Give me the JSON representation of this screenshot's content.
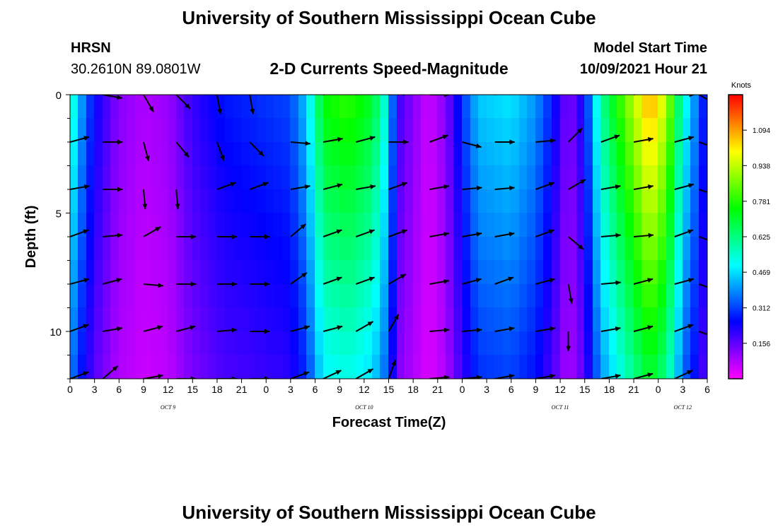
{
  "header": {
    "title": "University of Southern Mississippi Ocean Cube",
    "station": "HRSN",
    "coords": "30.2610N  89.0801W",
    "chart_title": "2-D Currents Speed-Magnitude",
    "model_start_label": "Model Start Time",
    "model_start_value": "10/09/2021 Hour 21"
  },
  "footer": {
    "title": "University of Southern Mississippi Ocean Cube"
  },
  "colors": {
    "magenta": "#ff00ff",
    "blue": "#0000ff",
    "cyan": "#00ffff",
    "green": "#00ff00",
    "yellow": "#ffff00",
    "red": "#ff0000"
  },
  "chart_data": {
    "type": "heatmap",
    "title": "2-D Currents Speed-Magnitude",
    "xlabel": "Forecast Time(Z)",
    "ylabel": "Depth (ft)",
    "colorbar_label": "Knots",
    "colorbar_ticks": [
      "1.094",
      "0.938",
      "0.781",
      "0.625",
      "0.469",
      "0.312",
      "0.156"
    ],
    "colorbar_values": [
      1.094,
      0.938,
      0.781,
      0.625,
      0.469,
      0.312,
      0.156
    ],
    "colorbar_range": [
      0,
      1.25
    ],
    "xlim": [
      0,
      78
    ],
    "ylim": [
      0,
      12
    ],
    "x_tick_labels": [
      "0",
      "3",
      "6",
      "9",
      "12",
      "15",
      "18",
      "21",
      "0",
      "3",
      "6",
      "9",
      "12",
      "15",
      "18",
      "21",
      "0",
      "3",
      "6",
      "9",
      "12",
      "15",
      "18",
      "21",
      "0",
      "3",
      "6"
    ],
    "y_ticks": [
      0,
      5,
      10
    ],
    "y_tick_labels": [
      "0",
      "5",
      "10"
    ],
    "date_labels": [
      {
        "label": "OCT 9",
        "hour": 12
      },
      {
        "label": "OCT 10",
        "hour": 36
      },
      {
        "label": "OCT 11",
        "hour": 60
      },
      {
        "label": "OCT 12",
        "hour": 75
      }
    ],
    "speed_profile": [
      {
        "hour": 0,
        "speed": 0.6
      },
      {
        "hour": 1,
        "speed": 0.45
      },
      {
        "hour": 3,
        "speed": 0.25
      },
      {
        "hour": 6,
        "speed": 0.12
      },
      {
        "hour": 9,
        "speed": 0.08
      },
      {
        "hour": 12,
        "speed": 0.1
      },
      {
        "hour": 15,
        "speed": 0.2
      },
      {
        "hour": 19,
        "speed": 0.27
      },
      {
        "hour": 24,
        "speed": 0.3
      },
      {
        "hour": 27,
        "speed": 0.32
      },
      {
        "hour": 29,
        "speed": 0.45
      },
      {
        "hour": 31,
        "speed": 0.75
      },
      {
        "hour": 34,
        "speed": 0.8
      },
      {
        "hour": 37,
        "speed": 0.72
      },
      {
        "hour": 39,
        "speed": 0.5
      },
      {
        "hour": 40,
        "speed": 0.2
      },
      {
        "hour": 42,
        "speed": 0.12
      },
      {
        "hour": 44,
        "speed": 0.05
      },
      {
        "hour": 46,
        "speed": 0.12
      },
      {
        "hour": 48,
        "speed": 0.3
      },
      {
        "hour": 50,
        "speed": 0.45
      },
      {
        "hour": 54,
        "speed": 0.48
      },
      {
        "hour": 57,
        "speed": 0.4
      },
      {
        "hour": 59,
        "speed": 0.28
      },
      {
        "hour": 61,
        "speed": 0.12
      },
      {
        "hour": 63,
        "speed": 0.25
      },
      {
        "hour": 65,
        "speed": 0.6
      },
      {
        "hour": 68,
        "speed": 0.85
      },
      {
        "hour": 71,
        "speed": 1.1
      },
      {
        "hour": 73,
        "speed": 0.95
      },
      {
        "hour": 75,
        "speed": 0.55
      },
      {
        "hour": 77,
        "speed": 0.35
      },
      {
        "hour": 78,
        "speed": 0.22
      }
    ],
    "vector_times": [
      0,
      4,
      9,
      13,
      18,
      22,
      27,
      31,
      35,
      39,
      44,
      48,
      52,
      57,
      61,
      65,
      69,
      74,
      77
    ],
    "vector_depths": [
      0,
      2,
      4,
      6,
      8,
      10,
      12
    ],
    "vector_angles_deg": [
      [
        30,
        -10,
        -60,
        -45,
        -80,
        -80,
        30,
        10,
        20,
        5,
        0,
        15,
        20,
        30,
        45,
        20,
        15,
        0,
        -30
      ],
      [
        15,
        0,
        -75,
        -50,
        -70,
        -45,
        -5,
        10,
        15,
        0,
        20,
        -15,
        0,
        5,
        45,
        20,
        10,
        15,
        -20
      ],
      [
        10,
        0,
        -85,
        -85,
        20,
        20,
        10,
        15,
        10,
        20,
        10,
        5,
        5,
        20,
        30,
        10,
        10,
        15,
        -20
      ],
      [
        20,
        5,
        30,
        0,
        0,
        0,
        40,
        20,
        20,
        20,
        10,
        10,
        10,
        20,
        -40,
        5,
        5,
        20,
        -20
      ],
      [
        15,
        15,
        -5,
        0,
        0,
        0,
        35,
        20,
        20,
        30,
        10,
        15,
        20,
        15,
        -80,
        5,
        15,
        15,
        -20
      ],
      [
        20,
        10,
        15,
        15,
        5,
        0,
        15,
        15,
        30,
        60,
        5,
        5,
        10,
        10,
        -90,
        10,
        15,
        20,
        -20
      ],
      [
        20,
        40,
        10,
        0,
        0,
        0,
        20,
        25,
        30,
        70,
        5,
        5,
        10,
        10,
        -85,
        10,
        15,
        25,
        -40
      ]
    ]
  }
}
